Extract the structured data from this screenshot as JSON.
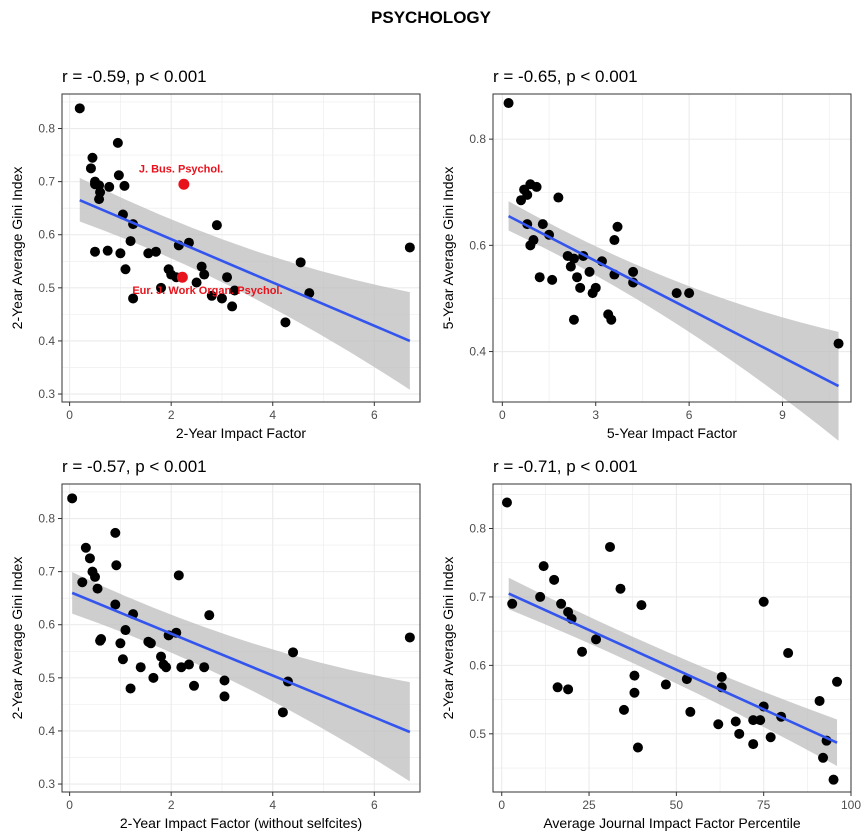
{
  "title": "PSYCHOLOGY",
  "colors": {
    "point": "#000000",
    "highlight": "#e8121c",
    "fit": "#3355ee",
    "band": "#bdbdbd",
    "grid": "#ebebeb",
    "border": "#333333"
  },
  "chart_data": [
    {
      "type": "scatter",
      "stat_label": "r = -0.59, p < 0.001",
      "xlabel": "2-Year Impact Factor",
      "ylabel": "2-Year Average Gini Index",
      "xlim": [
        -0.15,
        6.9
      ],
      "ylim": [
        0.285,
        0.865
      ],
      "xticks": [
        0,
        2,
        4,
        6
      ],
      "yticks": [
        0.3,
        0.4,
        0.5,
        0.6,
        0.7,
        0.8
      ],
      "grid": true,
      "fit": {
        "x": [
          0.2,
          6.7
        ],
        "y": [
          0.665,
          0.4
        ],
        "lower": [
          0.625,
          0.308
        ],
        "upper": [
          0.707,
          0.492
        ]
      },
      "points": [
        [
          0.2,
          0.838
        ],
        [
          0.45,
          0.745
        ],
        [
          0.42,
          0.725
        ],
        [
          0.5,
          0.7
        ],
        [
          0.58,
          0.693
        ],
        [
          0.6,
          0.68
        ],
        [
          0.58,
          0.667
        ],
        [
          0.78,
          0.69
        ],
        [
          0.95,
          0.773
        ],
        [
          0.97,
          0.712
        ],
        [
          1.08,
          0.692
        ],
        [
          0.5,
          0.695
        ],
        [
          1.05,
          0.638
        ],
        [
          1.25,
          0.62
        ],
        [
          0.5,
          0.568
        ],
        [
          0.75,
          0.57
        ],
        [
          1.0,
          0.565
        ],
        [
          1.1,
          0.535
        ],
        [
          1.2,
          0.588
        ],
        [
          1.25,
          0.48
        ],
        [
          1.55,
          0.565
        ],
        [
          1.7,
          0.568
        ],
        [
          1.8,
          0.5
        ],
        [
          1.95,
          0.535
        ],
        [
          2.0,
          0.525
        ],
        [
          2.1,
          0.52
        ],
        [
          2.15,
          0.58
        ],
        [
          2.35,
          0.585
        ],
        [
          2.5,
          0.51
        ],
        [
          2.6,
          0.54
        ],
        [
          2.65,
          0.525
        ],
        [
          2.8,
          0.485
        ],
        [
          2.9,
          0.618
        ],
        [
          3.0,
          0.48
        ],
        [
          3.1,
          0.52
        ],
        [
          3.2,
          0.465
        ],
        [
          3.25,
          0.495
        ],
        [
          4.25,
          0.435
        ],
        [
          4.55,
          0.548
        ],
        [
          4.72,
          0.49
        ],
        [
          6.7,
          0.576
        ]
      ],
      "highlights": [
        {
          "x": 2.25,
          "y": 0.695,
          "label": "J. Bus. Psychol."
        },
        {
          "x": 2.22,
          "y": 0.52,
          "label": "Eur. J. Work Organ. Psychol."
        }
      ]
    },
    {
      "type": "scatter",
      "stat_label": "r = -0.65, p < 0.001",
      "xlabel": "5-Year Impact Factor",
      "ylabel": "5-Year Average Gini Index",
      "xlim": [
        -0.3,
        11.2
      ],
      "ylim": [
        0.305,
        0.885
      ],
      "xticks": [
        0,
        3,
        6,
        9
      ],
      "yticks": [
        0.4,
        0.6,
        0.8
      ],
      "grid": true,
      "fit": {
        "x": [
          0.2,
          10.8
        ],
        "y": [
          0.655,
          0.335
        ],
        "lower": [
          0.628,
          0.232
        ],
        "upper": [
          0.683,
          0.437
        ]
      },
      "points": [
        [
          0.2,
          0.868
        ],
        [
          0.6,
          0.685
        ],
        [
          0.7,
          0.705
        ],
        [
          0.8,
          0.695
        ],
        [
          0.9,
          0.715
        ],
        [
          1.1,
          0.71
        ],
        [
          0.8,
          0.64
        ],
        [
          1.0,
          0.61
        ],
        [
          1.3,
          0.64
        ],
        [
          1.5,
          0.62
        ],
        [
          0.9,
          0.6
        ],
        [
          1.2,
          0.54
        ],
        [
          1.6,
          0.535
        ],
        [
          1.8,
          0.69
        ],
        [
          2.1,
          0.58
        ],
        [
          2.2,
          0.56
        ],
        [
          2.3,
          0.575
        ],
        [
          2.4,
          0.54
        ],
        [
          2.5,
          0.52
        ],
        [
          2.3,
          0.46
        ],
        [
          2.6,
          0.58
        ],
        [
          2.8,
          0.55
        ],
        [
          3.0,
          0.52
        ],
        [
          3.2,
          0.57
        ],
        [
          2.9,
          0.51
        ],
        [
          3.4,
          0.47
        ],
        [
          3.5,
          0.46
        ],
        [
          3.6,
          0.61
        ],
        [
          3.7,
          0.635
        ],
        [
          3.6,
          0.545
        ],
        [
          4.2,
          0.55
        ],
        [
          4.2,
          0.53
        ],
        [
          5.6,
          0.51
        ],
        [
          6.0,
          0.51
        ],
        [
          10.8,
          0.415
        ]
      ],
      "highlights": []
    },
    {
      "type": "scatter",
      "stat_label": "r = -0.57, p < 0.001",
      "xlabel": "2-Year Impact Factor (without selfcites)",
      "ylabel": "2-Year Average Gini Index",
      "xlim": [
        -0.15,
        6.9
      ],
      "ylim": [
        0.285,
        0.865
      ],
      "xticks": [
        0,
        2,
        4,
        6
      ],
      "yticks": [
        0.3,
        0.4,
        0.5,
        0.6,
        0.7,
        0.8
      ],
      "grid": true,
      "fit": {
        "x": [
          0.05,
          6.7
        ],
        "y": [
          0.66,
          0.398
        ],
        "lower": [
          0.621,
          0.305
        ],
        "upper": [
          0.699,
          0.492
        ]
      },
      "points": [
        [
          0.05,
          0.838
        ],
        [
          0.25,
          0.68
        ],
        [
          0.32,
          0.745
        ],
        [
          0.4,
          0.725
        ],
        [
          0.45,
          0.7
        ],
        [
          0.5,
          0.69
        ],
        [
          0.55,
          0.668
        ],
        [
          0.6,
          0.57
        ],
        [
          0.62,
          0.573
        ],
        [
          0.9,
          0.773
        ],
        [
          0.92,
          0.712
        ],
        [
          0.9,
          0.638
        ],
        [
          1.0,
          0.565
        ],
        [
          1.05,
          0.535
        ],
        [
          1.1,
          0.59
        ],
        [
          1.2,
          0.48
        ],
        [
          1.25,
          0.62
        ],
        [
          1.4,
          0.52
        ],
        [
          1.55,
          0.568
        ],
        [
          1.6,
          0.565
        ],
        [
          1.65,
          0.5
        ],
        [
          1.8,
          0.54
        ],
        [
          1.85,
          0.525
        ],
        [
          1.9,
          0.52
        ],
        [
          1.95,
          0.58
        ],
        [
          2.1,
          0.585
        ],
        [
          2.15,
          0.693
        ],
        [
          2.2,
          0.52
        ],
        [
          2.35,
          0.525
        ],
        [
          2.45,
          0.485
        ],
        [
          2.65,
          0.52
        ],
        [
          2.75,
          0.618
        ],
        [
          3.05,
          0.495
        ],
        [
          3.05,
          0.465
        ],
        [
          4.2,
          0.435
        ],
        [
          4.3,
          0.493
        ],
        [
          4.4,
          0.548
        ],
        [
          6.7,
          0.576
        ]
      ],
      "highlights": []
    },
    {
      "type": "scatter",
      "stat_label": "r = -0.71, p < 0.001",
      "xlabel": "Average Journal Impact Factor Percentile",
      "ylabel": "2-Year Average Gini Index",
      "xlim": [
        -2.5,
        100
      ],
      "ylim": [
        0.415,
        0.865
      ],
      "xticks": [
        0,
        25,
        50,
        75,
        100
      ],
      "yticks": [
        0.5,
        0.6,
        0.7,
        0.8
      ],
      "grid": true,
      "fit": {
        "x": [
          2.0,
          96.0
        ],
        "y": [
          0.705,
          0.487
        ],
        "lower": [
          0.682,
          0.453
        ],
        "upper": [
          0.728,
          0.521
        ]
      },
      "points": [
        [
          1.5,
          0.838
        ],
        [
          3,
          0.69
        ],
        [
          11,
          0.7
        ],
        [
          12,
          0.745
        ],
        [
          15,
          0.725
        ],
        [
          17,
          0.69
        ],
        [
          19,
          0.678
        ],
        [
          20,
          0.668
        ],
        [
          16,
          0.568
        ],
        [
          19,
          0.565
        ],
        [
          23,
          0.62
        ],
        [
          27,
          0.638
        ],
        [
          31,
          0.773
        ],
        [
          34,
          0.712
        ],
        [
          38,
          0.585
        ],
        [
          38,
          0.56
        ],
        [
          39,
          0.48
        ],
        [
          40,
          0.688
        ],
        [
          35,
          0.535
        ],
        [
          47,
          0.572
        ],
        [
          53,
          0.58
        ],
        [
          54,
          0.532
        ],
        [
          62,
          0.514
        ],
        [
          63,
          0.568
        ],
        [
          63,
          0.583
        ],
        [
          67,
          0.518
        ],
        [
          68,
          0.5
        ],
        [
          72,
          0.52
        ],
        [
          72,
          0.485
        ],
        [
          74,
          0.52
        ],
        [
          75,
          0.54
        ],
        [
          75,
          0.693
        ],
        [
          77,
          0.495
        ],
        [
          80,
          0.525
        ],
        [
          82,
          0.618
        ],
        [
          91,
          0.548
        ],
        [
          93,
          0.49
        ],
        [
          92,
          0.465
        ],
        [
          95,
          0.433
        ],
        [
          96,
          0.576
        ]
      ],
      "highlights": []
    }
  ]
}
